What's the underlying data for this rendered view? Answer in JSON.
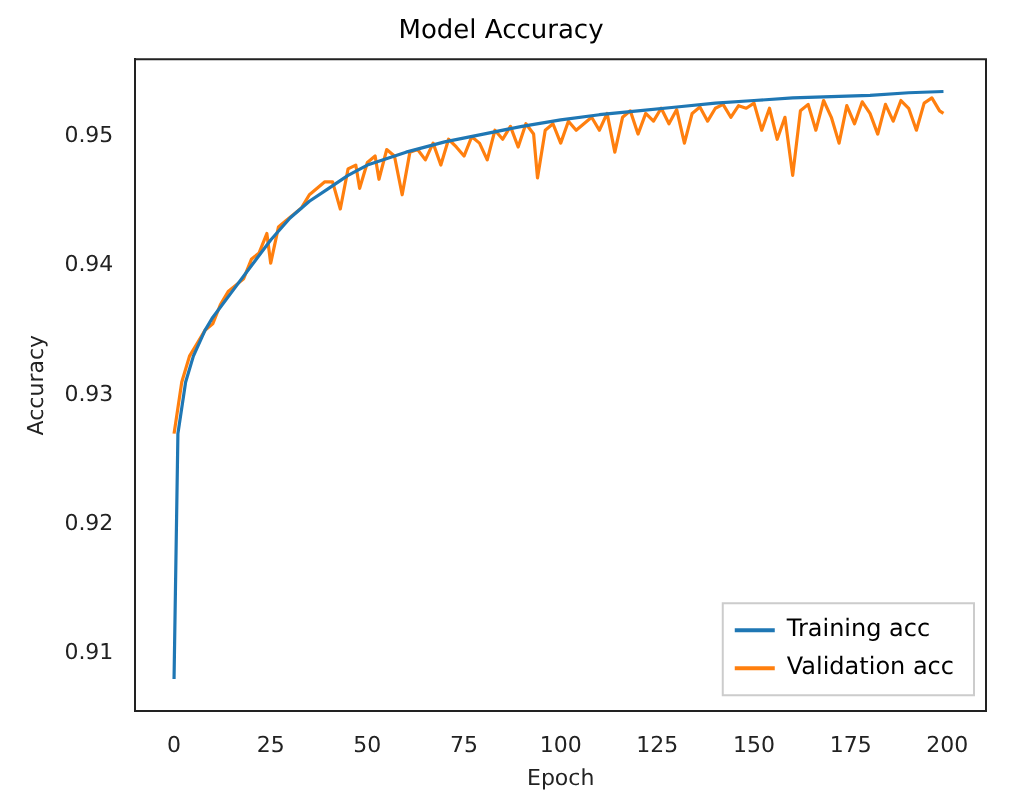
{
  "chart_data": {
    "type": "line",
    "title": "Model Accuracy",
    "xlabel": "Epoch",
    "ylabel": "Accuracy",
    "xlim": [
      -10,
      210
    ],
    "xticks": [
      0,
      25,
      50,
      75,
      100,
      125,
      150,
      175,
      200
    ],
    "ylim": [
      0.9055,
      0.956
    ],
    "yticks": [
      0.91,
      0.92,
      0.93,
      0.94,
      0.95
    ],
    "grid": false,
    "legend": "bottom right",
    "marker": "none",
    "line_style": "solid",
    "series": [
      {
        "name": "Training acc",
        "color": "#1f77b4",
        "x": [
          0,
          1,
          3,
          5,
          8,
          10,
          15,
          20,
          25,
          30,
          35,
          40,
          45,
          50,
          60,
          70,
          80,
          90,
          100,
          110,
          120,
          130,
          140,
          150,
          160,
          170,
          180,
          190,
          199
        ],
        "values": [
          0.908,
          0.927,
          0.931,
          0.933,
          0.935,
          0.936,
          0.938,
          0.94,
          0.942,
          0.9437,
          0.945,
          0.946,
          0.947,
          0.9478,
          0.9488,
          0.9496,
          0.9502,
          0.9508,
          0.9513,
          0.9517,
          0.952,
          0.9523,
          0.9526,
          0.9528,
          0.953,
          0.9531,
          0.9532,
          0.9534,
          0.9535
        ]
      },
      {
        "name": "Validation acc",
        "color": "#ff7f0e",
        "x": [
          0,
          2,
          4,
          6,
          8,
          10,
          12,
          14,
          16,
          18,
          20,
          22,
          24,
          25,
          27,
          29,
          31,
          33,
          35,
          37,
          39,
          41,
          43,
          45,
          47,
          48,
          50,
          52,
          53,
          55,
          57,
          59,
          61,
          63,
          65,
          67,
          69,
          71,
          73,
          75,
          77,
          79,
          81,
          83,
          85,
          87,
          89,
          91,
          93,
          94,
          96,
          98,
          100,
          102,
          104,
          106,
          108,
          110,
          112,
          114,
          116,
          118,
          120,
          122,
          124,
          126,
          128,
          130,
          132,
          134,
          136,
          138,
          140,
          142,
          144,
          146,
          148,
          150,
          152,
          154,
          156,
          158,
          160,
          162,
          164,
          166,
          168,
          170,
          172,
          174,
          176,
          178,
          180,
          182,
          184,
          186,
          188,
          190,
          192,
          194,
          196,
          198,
          199
        ],
        "values": [
          0.927,
          0.931,
          0.933,
          0.934,
          0.935,
          0.9355,
          0.937,
          0.938,
          0.9385,
          0.939,
          0.9405,
          0.941,
          0.9425,
          0.9402,
          0.943,
          0.9435,
          0.944,
          0.9445,
          0.9455,
          0.946,
          0.9465,
          0.9465,
          0.9444,
          0.9475,
          0.9478,
          0.946,
          0.948,
          0.9485,
          0.9467,
          0.949,
          0.9485,
          0.9455,
          0.9488,
          0.949,
          0.9482,
          0.9495,
          0.9478,
          0.9498,
          0.9492,
          0.9485,
          0.95,
          0.9495,
          0.9482,
          0.9505,
          0.9498,
          0.9508,
          0.9492,
          0.951,
          0.9502,
          0.9468,
          0.9505,
          0.951,
          0.9495,
          0.9512,
          0.9505,
          0.951,
          0.9515,
          0.9505,
          0.9518,
          0.9488,
          0.9515,
          0.952,
          0.9502,
          0.9518,
          0.9512,
          0.9522,
          0.951,
          0.9521,
          0.9495,
          0.9518,
          0.9523,
          0.9512,
          0.9522,
          0.9525,
          0.9515,
          0.9524,
          0.9522,
          0.9526,
          0.9505,
          0.9522,
          0.9498,
          0.9515,
          0.947,
          0.952,
          0.9525,
          0.9505,
          0.9528,
          0.9515,
          0.9495,
          0.9524,
          0.951,
          0.9527,
          0.9518,
          0.9502,
          0.9525,
          0.9512,
          0.9528,
          0.9522,
          0.9505,
          0.9526,
          0.953,
          0.952,
          0.9518
        ]
      }
    ]
  }
}
